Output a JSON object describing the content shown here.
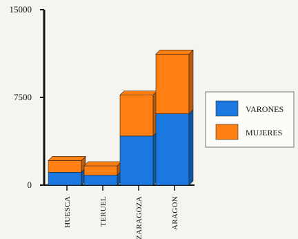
{
  "chart_data": {
    "type": "bar",
    "stacked": true,
    "three_d": true,
    "categories": [
      "HUESCA",
      "TERUEL",
      "ZARAGOZA",
      "ARAGON"
    ],
    "series": [
      {
        "name": "VARONES",
        "color": "#1a78e0",
        "values": [
          1100,
          850,
          4200,
          6100
        ]
      },
      {
        "name": "MUJERES",
        "color": "#ff7f12",
        "values": [
          1000,
          800,
          3500,
          5100
        ]
      }
    ],
    "ylim": [
      0,
      15000
    ],
    "y_ticks": [
      "0",
      "7500",
      "15000"
    ],
    "y_tick_values": [
      0,
      7500,
      15000
    ],
    "legend_position": "right",
    "grid": false
  }
}
